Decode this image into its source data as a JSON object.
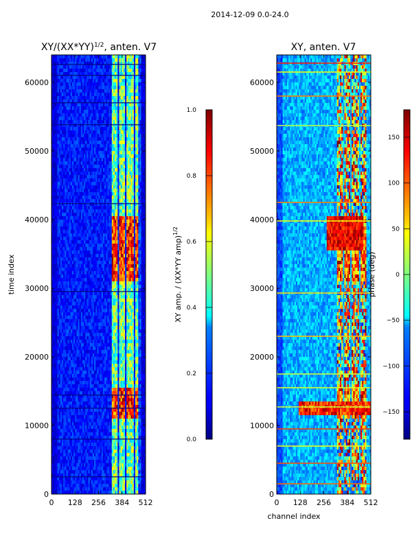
{
  "figure": {
    "suptitle": "2014-12-09 0.0-24.0"
  },
  "chart_data": [
    {
      "type": "heatmap",
      "title": "XY/(XX*YY)^{1/2}, anten. V7",
      "title_main": "XY/(XX*YY)",
      "title_sup": "1/2",
      "title_tail": ", anten. V7",
      "xlabel": "",
      "ylabel": "time index",
      "xlim": [
        0,
        512
      ],
      "ylim": [
        0,
        64000
      ],
      "xticks": [
        0,
        128,
        256,
        384,
        512
      ],
      "yticks": [
        0,
        10000,
        20000,
        30000,
        40000,
        50000,
        60000
      ],
      "colormap": "jet",
      "colorbar": {
        "label": "XY amp. / (XX*YY amp)^{1/2}",
        "label_main": "XY amp. / (XX*YY amp)",
        "label_sup": "1/2",
        "range": [
          0.0,
          1.0
        ],
        "ticks": [
          "0.0",
          "0.2",
          "0.4",
          "0.6",
          "0.8",
          "1.0"
        ]
      }
    },
    {
      "type": "heatmap",
      "title": "XY, anten. V7",
      "xlabel": "channel index",
      "ylabel": "",
      "xlim": [
        0,
        512
      ],
      "ylim": [
        0,
        64000
      ],
      "xticks": [
        0,
        128,
        256,
        384,
        512
      ],
      "yticks": [
        0,
        10000,
        20000,
        30000,
        40000,
        50000,
        60000
      ],
      "colormap": "jet",
      "colorbar": {
        "label": "phase (deg)",
        "range": [
          -180,
          180
        ],
        "ticks": [
          "−150",
          "−100",
          "−50",
          "0",
          "50",
          "100",
          "150"
        ]
      }
    }
  ]
}
